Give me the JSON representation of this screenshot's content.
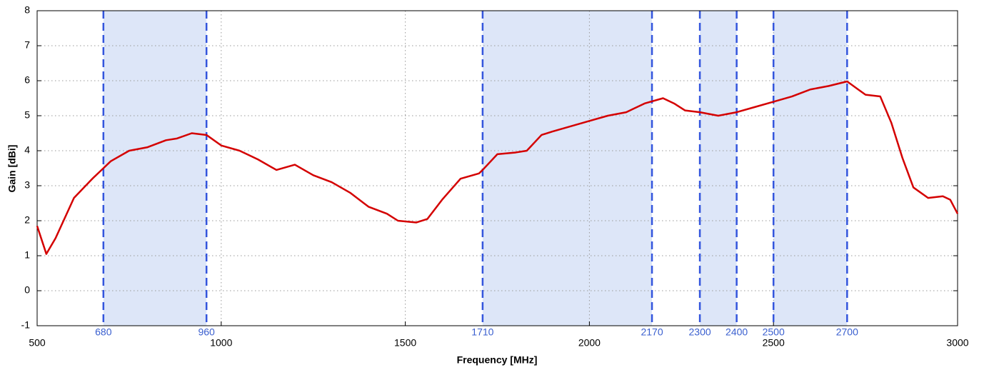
{
  "chart_data": {
    "type": "line",
    "xlabel": "Frequency [MHz]",
    "ylabel": "Gain [dBi]",
    "x": [
      500,
      525,
      550,
      600,
      650,
      680,
      700,
      750,
      800,
      850,
      880,
      920,
      960,
      1000,
      1050,
      1100,
      1150,
      1200,
      1250,
      1300,
      1350,
      1400,
      1450,
      1480,
      1530,
      1560,
      1600,
      1650,
      1700,
      1710,
      1750,
      1800,
      1830,
      1870,
      1900,
      1950,
      2000,
      2050,
      2100,
      2150,
      2200,
      2230,
      2260,
      2300,
      2350,
      2400,
      2450,
      2500,
      2550,
      2600,
      2650,
      2700,
      2730,
      2750,
      2790,
      2820,
      2850,
      2880,
      2920,
      2960,
      2980,
      3000
    ],
    "series": [
      {
        "color": "#d40000",
        "values": [
          1.85,
          1.05,
          1.5,
          2.65,
          3.2,
          3.5,
          3.7,
          4.0,
          4.1,
          4.3,
          4.35,
          4.5,
          4.45,
          4.15,
          4.0,
          3.75,
          3.45,
          3.6,
          3.3,
          3.1,
          2.8,
          2.4,
          2.2,
          2.0,
          1.95,
          2.05,
          2.6,
          3.2,
          3.35,
          3.45,
          3.9,
          3.95,
          4.0,
          4.45,
          4.55,
          4.7,
          4.85,
          5.0,
          5.1,
          5.35,
          5.5,
          5.35,
          5.15,
          5.1,
          5.0,
          5.1,
          5.25,
          5.4,
          5.55,
          5.75,
          5.85,
          5.98,
          5.75,
          5.6,
          5.55,
          4.8,
          3.8,
          2.95,
          2.65,
          2.7,
          2.6,
          2.2
        ]
      }
    ],
    "bands": [
      [
        680,
        960
      ],
      [
        1710,
        2170
      ],
      [
        2300,
        2400
      ],
      [
        2500,
        2700
      ]
    ],
    "band_color": "#dde6f8",
    "band_line_color": "#3355dd",
    "xlim": [
      500,
      3000
    ],
    "xticks": [
      500,
      1000,
      1500,
      2000,
      2500,
      3000
    ],
    "ylim": [
      -1,
      8
    ],
    "yticks": [
      -1,
      0,
      1,
      2,
      3,
      4,
      5,
      6,
      7,
      8
    ],
    "grid": true
  }
}
